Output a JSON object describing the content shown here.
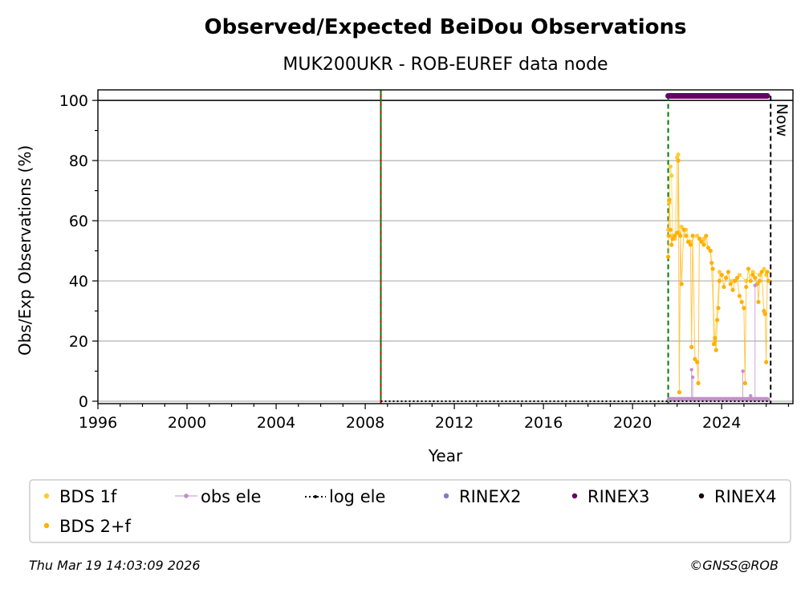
{
  "chart_data": {
    "type": "scatter",
    "title": "Observed/Expected BeiDou Observations",
    "subtitle": "MUK200UKR - ROB-EUREF data node",
    "xlabel": "Year",
    "ylabel": "Obs/Exp Observations (%)",
    "xlim": [
      1996,
      2027.2
    ],
    "ylim": [
      -0.8,
      103.5
    ],
    "xticks": [
      1996,
      2000,
      2004,
      2008,
      2012,
      2016,
      2020,
      2024
    ],
    "yticks": [
      0,
      20,
      40,
      60,
      80,
      100
    ],
    "grid": "horizontal",
    "now_label": "Now",
    "now_x": 2026.2,
    "vertical_lines": [
      {
        "x": 2008.7,
        "style": "red-green-dashed"
      },
      {
        "x": 2021.6,
        "style": "green-dashed"
      },
      {
        "x": 2026.2,
        "style": "black-dashed"
      }
    ],
    "series": [
      {
        "name": "BDS 1f",
        "color": "#ffcc33",
        "points": [
          [
            2021.6,
            57
          ],
          [
            2021.65,
            66
          ],
          [
            2021.7,
            78
          ],
          [
            2021.75,
            75
          ],
          [
            2021.8,
            55
          ],
          [
            2021.9,
            54
          ],
          [
            2022.0,
            81
          ],
          [
            2022.05,
            82
          ],
          [
            2022.1,
            56
          ],
          [
            2022.2,
            58
          ],
          [
            2022.4,
            57
          ],
          [
            2022.6,
            53
          ],
          [
            2022.9,
            55
          ],
          [
            2023.2,
            54
          ],
          [
            2023.5,
            50
          ],
          [
            2023.7,
            20
          ],
          [
            2023.9,
            43
          ],
          [
            2024.2,
            41
          ],
          [
            2024.5,
            40
          ],
          [
            2024.8,
            42
          ],
          [
            2025.1,
            40
          ],
          [
            2025.4,
            43
          ],
          [
            2025.7,
            42
          ],
          [
            2025.9,
            44
          ],
          [
            2026.0,
            42
          ]
        ]
      },
      {
        "name": "BDS 2+f",
        "color": "#ffb000",
        "points": [
          [
            2021.6,
            48
          ],
          [
            2021.62,
            55
          ],
          [
            2021.65,
            67
          ],
          [
            2021.7,
            57
          ],
          [
            2021.75,
            52
          ],
          [
            2021.8,
            54
          ],
          [
            2021.9,
            55
          ],
          [
            2022.0,
            56
          ],
          [
            2022.05,
            80
          ],
          [
            2022.1,
            3
          ],
          [
            2022.15,
            55
          ],
          [
            2022.2,
            39
          ],
          [
            2022.3,
            57
          ],
          [
            2022.4,
            55
          ],
          [
            2022.5,
            53
          ],
          [
            2022.6,
            52
          ],
          [
            2022.65,
            18
          ],
          [
            2022.7,
            55
          ],
          [
            2022.8,
            14
          ],
          [
            2022.9,
            13
          ],
          [
            2022.95,
            6
          ],
          [
            2023.0,
            54
          ],
          [
            2023.1,
            53
          ],
          [
            2023.2,
            52
          ],
          [
            2023.3,
            55
          ],
          [
            2023.4,
            51
          ],
          [
            2023.5,
            50
          ],
          [
            2023.55,
            46
          ],
          [
            2023.6,
            44
          ],
          [
            2023.65,
            19
          ],
          [
            2023.7,
            21
          ],
          [
            2023.75,
            17
          ],
          [
            2023.8,
            27
          ],
          [
            2023.85,
            31
          ],
          [
            2023.9,
            40
          ],
          [
            2024.0,
            42
          ],
          [
            2024.1,
            38
          ],
          [
            2024.2,
            41
          ],
          [
            2024.3,
            43
          ],
          [
            2024.4,
            39
          ],
          [
            2024.5,
            37
          ],
          [
            2024.6,
            40
          ],
          [
            2024.7,
            41
          ],
          [
            2024.8,
            35
          ],
          [
            2024.9,
            33
          ],
          [
            2025.0,
            31
          ],
          [
            2025.05,
            6
          ],
          [
            2025.1,
            38
          ],
          [
            2025.2,
            44
          ],
          [
            2025.3,
            40
          ],
          [
            2025.4,
            42
          ],
          [
            2025.5,
            41
          ],
          [
            2025.6,
            39
          ],
          [
            2025.65,
            33
          ],
          [
            2025.7,
            40
          ],
          [
            2025.8,
            43
          ],
          [
            2025.9,
            30
          ],
          [
            2025.95,
            29
          ],
          [
            2026.0,
            13
          ],
          [
            2026.05,
            43
          ],
          [
            2026.1,
            40
          ]
        ]
      },
      {
        "name": "obs ele",
        "color": "#c38fc9",
        "points": [
          [
            2021.6,
            0.5
          ],
          [
            2021.8,
            0.6
          ],
          [
            2022.0,
            0.5
          ],
          [
            2022.2,
            0.6
          ],
          [
            2022.4,
            0.5
          ],
          [
            2022.6,
            0.6
          ],
          [
            2022.65,
            10.5
          ],
          [
            2022.7,
            8
          ],
          [
            2022.8,
            0.6
          ],
          [
            2023.0,
            0.5
          ],
          [
            2023.2,
            0.6
          ],
          [
            2023.4,
            0.5
          ],
          [
            2023.6,
            0.6
          ],
          [
            2023.8,
            0.5
          ],
          [
            2024.0,
            0.6
          ],
          [
            2024.2,
            0.5
          ],
          [
            2024.4,
            0.6
          ],
          [
            2024.6,
            0.5
          ],
          [
            2024.8,
            0.6
          ],
          [
            2024.95,
            10
          ],
          [
            2025.1,
            0.5
          ],
          [
            2025.3,
            1.8
          ],
          [
            2025.4,
            0.6
          ],
          [
            2025.5,
            38.5
          ],
          [
            2025.6,
            0.5
          ],
          [
            2025.8,
            0.6
          ],
          [
            2026.0,
            0.5
          ],
          [
            2026.1,
            0.6
          ]
        ]
      },
      {
        "name": "log ele",
        "color": "#000000",
        "points": [
          [
            2008.7,
            0
          ],
          [
            2026.2,
            0
          ]
        ]
      },
      {
        "name": "RINEX2",
        "color": "#8878c0",
        "points": []
      },
      {
        "name": "RINEX3",
        "color": "#660066",
        "points": [
          [
            2021.6,
            101.5
          ],
          [
            2026.05,
            101.5
          ]
        ]
      },
      {
        "name": "RINEX4",
        "color": "#1a0010",
        "points": []
      }
    ],
    "legend": {
      "placement": "bottom",
      "entries": [
        {
          "label": "BDS 1f",
          "color": "#ffcc33",
          "marker": "dot"
        },
        {
          "label": "obs ele",
          "color": "#c38fc9",
          "marker": "line-dot"
        },
        {
          "label": "log ele",
          "color": "#000000",
          "marker": "dotted-line"
        },
        {
          "label": "RINEX2",
          "color": "#8878c0",
          "marker": "dot"
        },
        {
          "label": "RINEX3",
          "color": "#660066",
          "marker": "dot"
        },
        {
          "label": "RINEX4",
          "color": "#1a0010",
          "marker": "dot"
        },
        {
          "label": "BDS 2+f",
          "color": "#ffb000",
          "marker": "dot"
        }
      ]
    }
  },
  "footer": {
    "timestamp": "Thu Mar 19 14:03:09 2026",
    "copyright": "©GNSS@ROB"
  }
}
